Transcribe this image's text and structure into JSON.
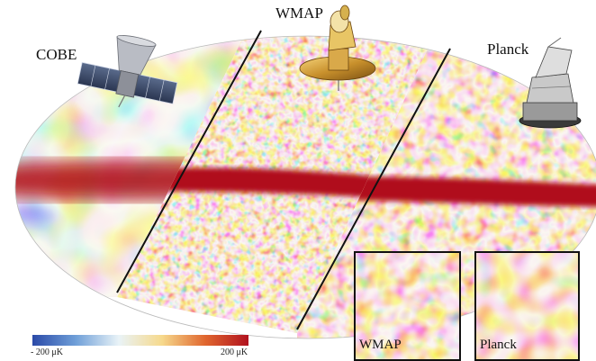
{
  "labels": {
    "cobe": "COBE",
    "wmap": "WMAP",
    "planck": "Planck"
  },
  "colorbar": {
    "min_label": "- 200 μK",
    "max_label": "200 μK",
    "colors": [
      "#2b4aa8",
      "#6f9fd8",
      "#e9f3f7",
      "#f6d98c",
      "#e0662e",
      "#b1121f"
    ]
  },
  "insets": {
    "wmap_label": "WMAP",
    "planck_label": "Planck"
  },
  "icons": {
    "cobe": "cobe-satellite-icon",
    "wmap": "wmap-satellite-icon",
    "planck": "planck-satellite-icon"
  }
}
